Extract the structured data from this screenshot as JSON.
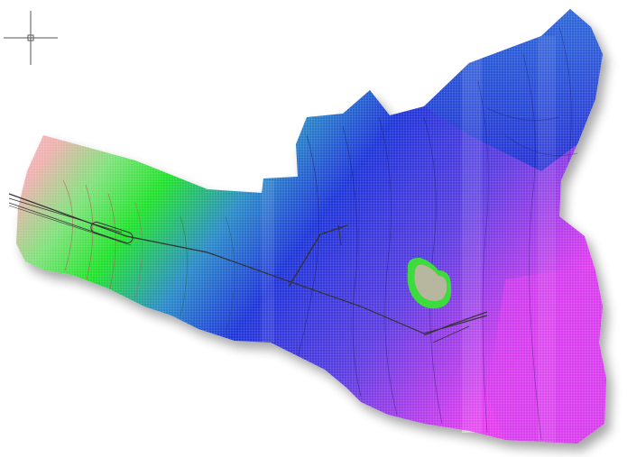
{
  "window": {
    "background": "#ffffff"
  },
  "cursor": {
    "icon": "crosshair-cursor-icon"
  },
  "surface": {
    "colors": {
      "low": "#f4c7c7",
      "mid": "#22dd2a",
      "high": "#1b2fd6",
      "east": "#e03cf0"
    },
    "contour_color": "#1a1a6e",
    "feature_color": "#333333",
    "highlight_color": "#b7b7a0",
    "highlight_ring_color": "#3cdc3c"
  }
}
